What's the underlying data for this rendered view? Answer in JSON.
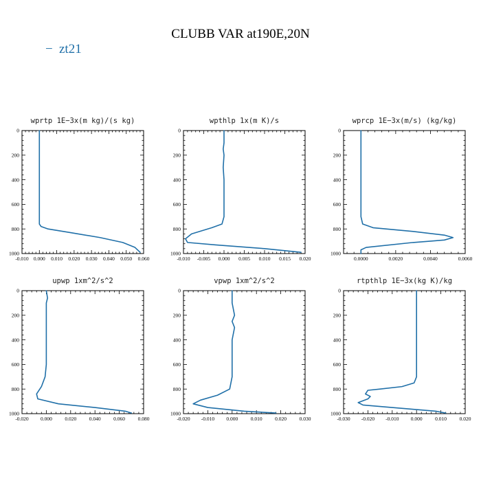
{
  "figure": {
    "title": "CLUBB VAR at190E,20N",
    "legend": {
      "marker": "−",
      "label": "zt21"
    },
    "line_color": "#1f6fa8"
  },
  "chart_data": [
    {
      "type": "line",
      "title": "wprtp   1E−3x(m kg)/(s kg)",
      "xlim": [
        -0.01,
        0.06
      ],
      "ylim": [
        0,
        1000
      ],
      "y_inverted": true,
      "xticks": [
        "-0.010",
        "0.000",
        "0.010",
        "0.020",
        "0.030",
        "0.040",
        "0.050",
        "0.060"
      ],
      "xtick_values": [
        -0.01,
        0.0,
        0.01,
        0.02,
        0.03,
        0.04,
        0.05,
        0.06
      ],
      "yticks": [
        "0",
        "200",
        "400",
        "600",
        "800",
        "1000"
      ],
      "series": [
        {
          "x": [
            0.0,
            0.0,
            0.0,
            0.0,
            0.0,
            0.0,
            0.001,
            0.005,
            0.018,
            0.035,
            0.048,
            0.055,
            0.058
          ],
          "y": [
            0,
            100,
            300,
            500,
            700,
            760,
            780,
            800,
            830,
            870,
            910,
            950,
            990
          ]
        }
      ]
    },
    {
      "type": "line",
      "title": "wpthlp   1x(m K)/s",
      "xlim": [
        -0.01,
        0.02
      ],
      "ylim": [
        0,
        1000
      ],
      "y_inverted": true,
      "xticks": [
        "-0.010",
        "-0.005",
        "0.000",
        "0.005",
        "0.010",
        "0.015",
        "0.020"
      ],
      "xtick_values": [
        -0.01,
        -0.005,
        0.0,
        0.005,
        0.01,
        0.015,
        0.02
      ],
      "yticks": [
        "0",
        "200",
        "400",
        "600",
        "800",
        "1000"
      ],
      "series": [
        {
          "x": [
            0.0,
            0.0,
            -0.0002,
            0.0,
            -0.0002,
            0.0,
            0.0,
            0.0,
            0.0,
            -0.0005,
            -0.003,
            -0.008,
            -0.0095,
            -0.009,
            -0.002,
            0.01,
            0.019
          ],
          "y": [
            0,
            100,
            150,
            200,
            300,
            400,
            500,
            600,
            700,
            760,
            790,
            840,
            880,
            910,
            930,
            960,
            990
          ]
        }
      ]
    },
    {
      "type": "line",
      "title": "wprcp   1E−3x(m/s) (kg/kg)",
      "xlim": [
        -0.001,
        0.006
      ],
      "ylim": [
        0,
        1000
      ],
      "y_inverted": true,
      "xticks": [
        "0.0000",
        "0.0020",
        "0.0040",
        "0.0060"
      ],
      "xtick_values": [
        0.0,
        0.002,
        0.004,
        0.006
      ],
      "yticks": [
        "0",
        "200",
        "400",
        "600",
        "800",
        "1000"
      ],
      "series": [
        {
          "x": [
            0.0,
            0.0,
            0.0,
            0.0,
            0.0,
            0.0001,
            0.0007,
            0.003,
            0.0048,
            0.0053,
            0.0048,
            0.003,
            0.0003,
            0.0,
            0.0
          ],
          "y": [
            0,
            200,
            400,
            600,
            700,
            760,
            790,
            820,
            850,
            870,
            890,
            910,
            950,
            970,
            1000
          ]
        }
      ]
    },
    {
      "type": "line",
      "title": "upwp   1xm^2/s^2",
      "xlim": [
        -0.02,
        0.08
      ],
      "ylim": [
        0,
        1000
      ],
      "y_inverted": true,
      "xticks": [
        "-0.020",
        "0.000",
        "0.020",
        "0.040",
        "0.060",
        "0.080"
      ],
      "xtick_values": [
        -0.02,
        0.0,
        0.02,
        0.04,
        0.06,
        0.08
      ],
      "yticks": [
        "0",
        "200",
        "400",
        "600",
        "800",
        "1000"
      ],
      "series": [
        {
          "x": [
            0.0,
            0.001,
            0.0,
            0.0,
            0.0,
            0.0,
            0.0,
            0.0,
            -0.001,
            -0.004,
            -0.008,
            -0.007,
            0.01,
            0.04,
            0.065,
            0.07
          ],
          "y": [
            0,
            60,
            100,
            200,
            300,
            400,
            500,
            600,
            700,
            780,
            840,
            880,
            920,
            950,
            980,
            995
          ]
        }
      ]
    },
    {
      "type": "line",
      "title": "vpwp   1xm^2/s^2",
      "xlim": [
        -0.02,
        0.03
      ],
      "ylim": [
        0,
        1000
      ],
      "y_inverted": true,
      "xticks": [
        "-0.020",
        "-0.010",
        "0.000",
        "0.010",
        "0.020",
        "0.030"
      ],
      "xtick_values": [
        -0.02,
        -0.01,
        0.0,
        0.01,
        0.02,
        0.03
      ],
      "yticks": [
        "0",
        "200",
        "400",
        "600",
        "800",
        "1000"
      ],
      "series": [
        {
          "x": [
            0.0,
            0.0,
            0.001,
            0.0,
            0.001,
            0.0,
            0.0,
            0.0,
            0.0,
            -0.001,
            -0.006,
            -0.013,
            -0.016,
            -0.01,
            0.005,
            0.018
          ],
          "y": [
            0,
            100,
            200,
            250,
            300,
            400,
            500,
            600,
            700,
            800,
            850,
            890,
            920,
            950,
            980,
            995
          ]
        }
      ]
    },
    {
      "type": "line",
      "title": "rtpthlp   1E−3x(kg K)/kg",
      "xlim": [
        -0.03,
        0.02
      ],
      "ylim": [
        0,
        1000
      ],
      "y_inverted": true,
      "xticks": [
        "-0.030",
        "-0.020",
        "-0.010",
        "0.000",
        "0.010",
        "0.020"
      ],
      "xtick_values": [
        -0.03,
        -0.02,
        -0.01,
        0.0,
        0.01,
        0.02
      ],
      "yticks": [
        "0",
        "200",
        "400",
        "600",
        "800",
        "1000"
      ],
      "series": [
        {
          "x": [
            0.0,
            0.0,
            0.0,
            0.0,
            0.0,
            -0.001,
            -0.006,
            -0.015,
            -0.02,
            -0.021,
            -0.019,
            -0.02,
            -0.024,
            -0.022,
            -0.01,
            0.008,
            0.012
          ],
          "y": [
            0,
            200,
            400,
            600,
            700,
            750,
            780,
            800,
            810,
            840,
            860,
            880,
            910,
            930,
            950,
            980,
            995
          ]
        }
      ]
    }
  ]
}
